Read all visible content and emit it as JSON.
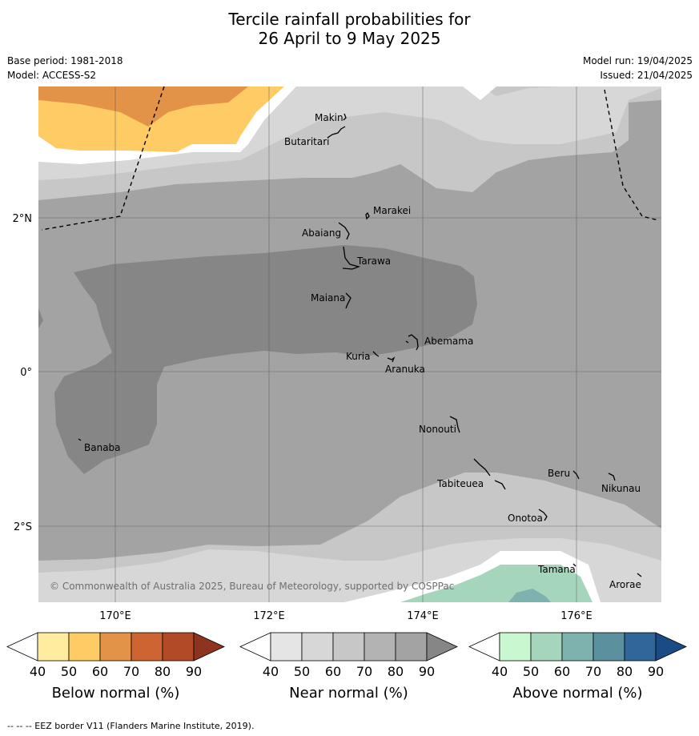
{
  "title_line1": "Tercile rainfall probabilities for",
  "title_line2": "26 April to 9 May 2025",
  "base_period": "Base period: 1981-2018",
  "model": "Model: ACCESS-S2",
  "model_run": "Model run: 19/04/2025",
  "issued": "Issued: 21/04/2025",
  "copyright": "© Commonwealth of Australia 2025, Bureau of Meteorology, supported by COSPPac",
  "footer": "--  --  -- EEZ border V11 (Flanders Marine Institute, 2019).",
  "axes": {
    "lon_labels": [
      "170°E",
      "172°E",
      "174°E",
      "176°E"
    ],
    "lat_labels": [
      "2°N",
      "0°",
      "2°S"
    ]
  },
  "places": [
    "Makin",
    "Butaritari",
    "Marakei",
    "Abaiang",
    "Tarawa",
    "Maiana",
    "Abemama",
    "Kuria",
    "Aranuka",
    "Nonouti",
    "Banaba",
    "Beru",
    "Tabiteuea",
    "Nikunau",
    "Onotoa",
    "Tamana",
    "Arorae"
  ],
  "colorbars": [
    {
      "title": "Below normal (%)",
      "ticks": [
        "40",
        "50",
        "60",
        "70",
        "80",
        "90"
      ],
      "colors": [
        "#ffffff",
        "#ffec9e",
        "#fecb65",
        "#e29347",
        "#cd6432",
        "#b24a28",
        "#8c3420"
      ]
    },
    {
      "title": "Near normal (%)",
      "ticks": [
        "40",
        "50",
        "60",
        "70",
        "80",
        "90"
      ],
      "colors": [
        "#ffffff",
        "#e5e5e5",
        "#d7d7d7",
        "#c7c7c7",
        "#b3b3b3",
        "#a3a3a3",
        "#868686"
      ]
    },
    {
      "title": "Above normal (%)",
      "ticks": [
        "40",
        "50",
        "60",
        "70",
        "80",
        "90"
      ],
      "colors": [
        "#ffffff",
        "#c9f7cf",
        "#a5d6bc",
        "#7db2ae",
        "#5b909f",
        "#31669b",
        "#1b4b84"
      ]
    }
  ]
}
